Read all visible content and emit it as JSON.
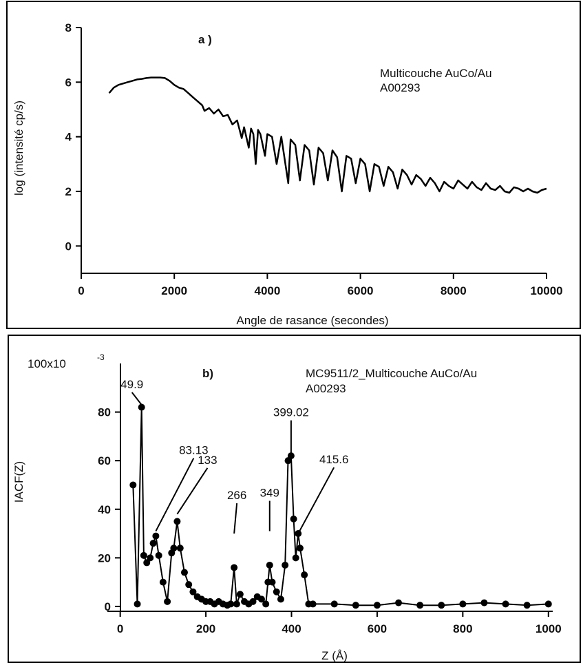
{
  "chart_data": [
    {
      "type": "line",
      "panel_label": "a )",
      "legend": [
        "Multicouche AuCo/Au",
        "A00293"
      ],
      "xlabel": "Angle de rasance (secondes)",
      "ylabel": "log  (intensité  cp/s)",
      "xlim": [
        0,
        10000
      ],
      "ylim": [
        -1,
        8
      ],
      "xticks": [
        0,
        2000,
        4000,
        6000,
        8000,
        10000
      ],
      "yticks": [
        0,
        2,
        4,
        6,
        8
      ],
      "series": [
        {
          "x": [
            600,
            700,
            800,
            900,
            1000,
            1100,
            1200,
            1300,
            1400,
            1500,
            1600,
            1700,
            1800,
            1900,
            2000,
            2100,
            2200,
            2300,
            2400,
            2500,
            2600,
            2650,
            2750,
            2850,
            2950,
            3050,
            3150,
            3250,
            3350,
            3450,
            3500,
            3600,
            3650,
            3700,
            3750,
            3800,
            3850,
            3950,
            4000,
            4100,
            4200,
            4300,
            4450,
            4500,
            4600,
            4700,
            4800,
            4900,
            5000,
            5100,
            5200,
            5300,
            5400,
            5500,
            5600,
            5700,
            5800,
            5900,
            6000,
            6100,
            6200,
            6300,
            6400,
            6500,
            6600,
            6700,
            6800,
            6900,
            7000,
            7100,
            7200,
            7300,
            7400,
            7500,
            7600,
            7700,
            7800,
            7900,
            8000,
            8100,
            8200,
            8300,
            8400,
            8500,
            8600,
            8700,
            8800,
            8900,
            9000,
            9100,
            9200,
            9300,
            9400,
            9500,
            9600,
            9700,
            9800,
            9900,
            10000
          ],
          "y": [
            5.6,
            5.8,
            5.9,
            5.95,
            6.0,
            6.05,
            6.1,
            6.12,
            6.15,
            6.17,
            6.17,
            6.17,
            6.15,
            6.05,
            5.9,
            5.8,
            5.75,
            5.6,
            5.45,
            5.3,
            5.15,
            4.95,
            5.05,
            4.85,
            5.0,
            4.75,
            4.8,
            4.45,
            4.6,
            3.95,
            4.35,
            3.6,
            4.3,
            4.1,
            3.0,
            4.25,
            4.1,
            3.3,
            4.1,
            4.0,
            3.0,
            4.0,
            2.3,
            3.9,
            3.7,
            2.4,
            3.7,
            3.5,
            2.25,
            3.6,
            3.4,
            2.4,
            3.5,
            3.25,
            2.0,
            3.3,
            3.2,
            2.3,
            3.2,
            3.0,
            2.0,
            3.0,
            2.9,
            2.2,
            2.9,
            2.7,
            2.1,
            2.8,
            2.6,
            2.25,
            2.6,
            2.45,
            2.2,
            2.5,
            2.3,
            2.0,
            2.35,
            2.2,
            2.1,
            2.4,
            2.25,
            2.1,
            2.35,
            2.15,
            2.05,
            2.3,
            2.1,
            2.05,
            2.2,
            2.0,
            1.95,
            2.15,
            2.1,
            2.0,
            2.1,
            2.0,
            1.95,
            2.05,
            2.1
          ]
        }
      ]
    },
    {
      "type": "line",
      "panel_label": "b)",
      "legend": [
        "MC9511/2_Multicouche AuCo/Au",
        "A00293"
      ],
      "xlabel": "Z (Å)",
      "ylabel": "IACF(Z)",
      "ytop_label": "100x10",
      "ytop_exponent": "-3",
      "xlim": [
        -30,
        1010
      ],
      "ylim": [
        -2,
        100
      ],
      "xticks": [
        0,
        200,
        400,
        600,
        800,
        1000
      ],
      "yticks": [
        0,
        20,
        40,
        60,
        80
      ],
      "annotations": [
        {
          "text": "49.9",
          "x": 49.9,
          "y": 83
        },
        {
          "text": "83.13",
          "x": 83.13,
          "y": 31
        },
        {
          "text": "133",
          "x": 133,
          "y": 38
        },
        {
          "text": "266",
          "x": 266,
          "y": 30
        },
        {
          "text": "349",
          "x": 349,
          "y": 31
        },
        {
          "text": "399.02",
          "x": 399.02,
          "y": 63
        },
        {
          "text": "415.6",
          "x": 415.6,
          "y": 30
        }
      ],
      "series": [
        {
          "x": [
            30,
            40,
            49.9,
            55,
            62,
            70,
            77,
            83.13,
            90,
            100,
            110,
            120,
            125,
            133,
            140,
            150,
            160,
            170,
            180,
            190,
            200,
            210,
            220,
            230,
            240,
            250,
            258,
            266,
            272,
            280,
            290,
            300,
            310,
            320,
            330,
            340,
            345,
            349,
            355,
            365,
            375,
            385,
            392,
            399.02,
            405,
            410,
            415.6,
            420,
            430,
            440,
            450,
            500,
            550,
            600,
            650,
            700,
            750,
            800,
            850,
            900,
            950,
            1000
          ],
          "y": [
            50,
            1,
            82,
            21,
            18,
            20,
            26,
            29,
            21,
            10,
            2,
            22,
            24,
            35,
            24,
            14,
            9,
            6,
            4,
            3,
            2,
            2,
            1,
            2,
            1,
            0.5,
            1,
            16,
            1,
            5,
            2,
            1,
            2,
            4,
            3,
            1,
            10,
            17,
            10,
            6,
            3,
            17,
            60,
            62,
            36,
            20,
            30,
            24,
            13,
            1,
            1,
            1,
            0.5,
            0.5,
            1.5,
            0.5,
            0.5,
            1,
            1.5,
            1,
            0.5,
            1
          ]
        }
      ]
    }
  ]
}
